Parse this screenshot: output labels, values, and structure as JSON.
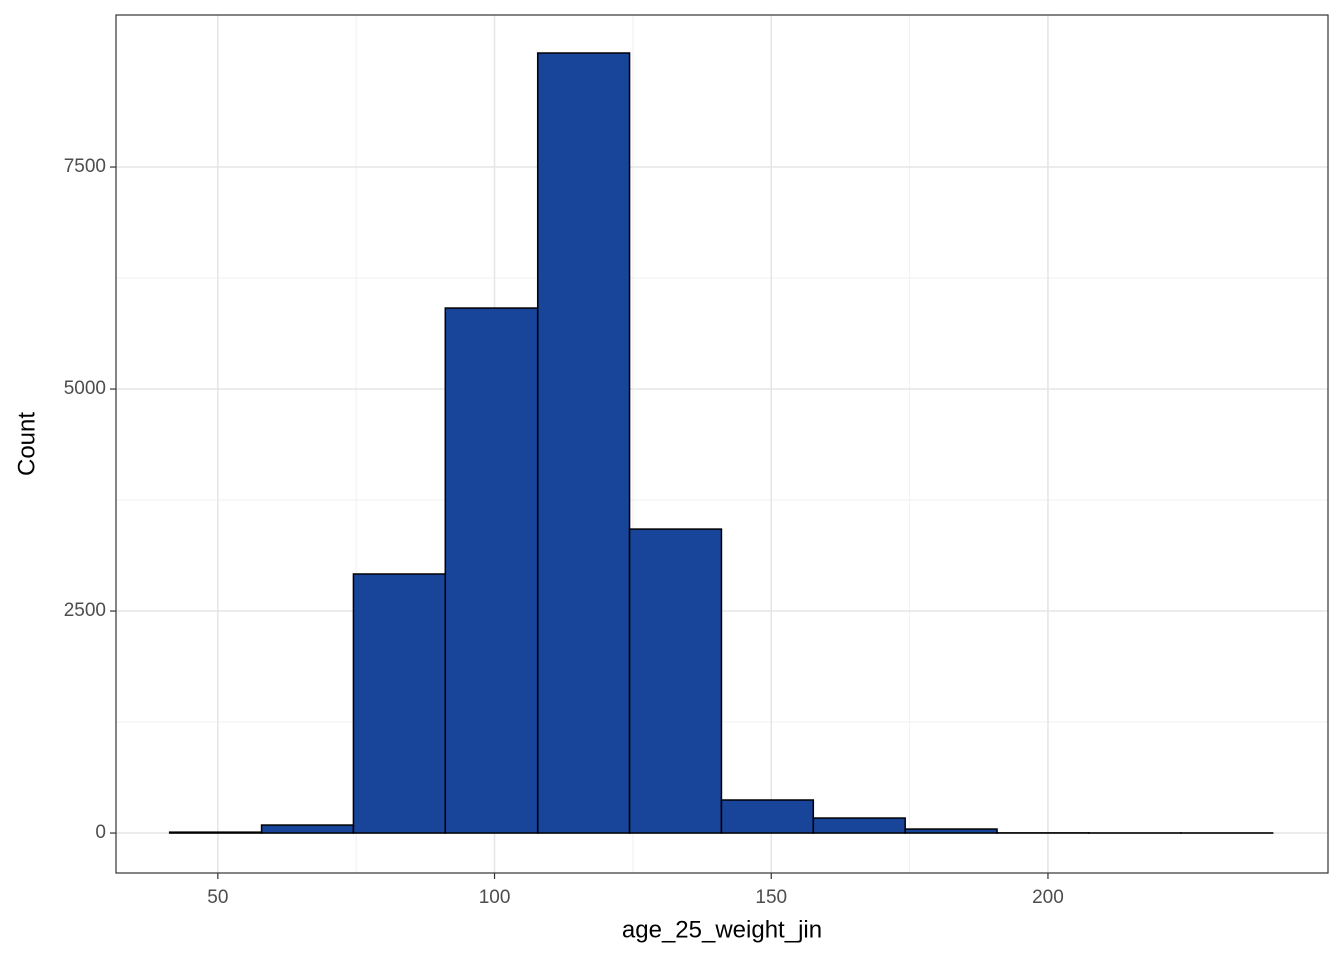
{
  "chart_data": {
    "type": "histogram",
    "x_label": "age_25_weight_jin",
    "y_label": "Count",
    "bins": [
      41.3,
      57.9,
      74.5,
      91.1,
      107.8,
      124.4,
      141.0,
      157.6,
      174.2,
      190.8,
      207.4,
      224.0,
      240.6
    ],
    "values": [
      10,
      90,
      2917,
      5912,
      8784,
      3423,
      372,
      169,
      45,
      2,
      1,
      1
    ],
    "color": "#18449a",
    "edgecolor": "#000000",
    "xlim": [
      31.6,
      250.6
    ],
    "xticks": [
      50,
      100,
      150,
      200
    ],
    "ylim": [
      -450,
      9212
    ],
    "yticks": [
      0,
      2500,
      5000,
      7500
    ],
    "grid": true
  }
}
